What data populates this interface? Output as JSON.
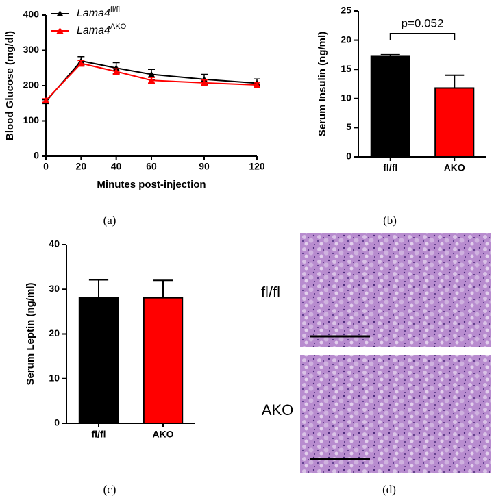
{
  "chart_data": [
    {
      "type": "line",
      "panel": "(a)",
      "x_label": "Minutes post-injection",
      "y_label": "Blood Glucose (mg/dl)",
      "x": [
        0,
        20,
        40,
        60,
        90,
        120
      ],
      "xlim": [
        0,
        120
      ],
      "xticks": [
        0,
        20,
        40,
        60,
        90,
        120
      ],
      "ylim": [
        0,
        400
      ],
      "yticks": [
        0,
        100,
        200,
        300,
        400
      ],
      "series": [
        {
          "name": "Lama4",
          "name_sup": "fl/fl",
          "color": "#000000",
          "values": [
            155,
            270,
            250,
            232,
            218,
            207
          ],
          "errors": [
            5,
            12,
            15,
            14,
            14,
            12
          ]
        },
        {
          "name": "Lama4",
          "name_sup": "AKO",
          "color": "#ff0000",
          "values": [
            158,
            263,
            240,
            215,
            208,
            202
          ],
          "errors": [
            5,
            8,
            8,
            8,
            8,
            6
          ]
        }
      ]
    },
    {
      "type": "bar",
      "panel": "(b)",
      "y_label": "Serum Insulin (ng/ml)",
      "categories": [
        "fl/fl",
        "AKO"
      ],
      "values": [
        17.2,
        11.8
      ],
      "errors": [
        0.3,
        2.2
      ],
      "colors": [
        "#000000",
        "#ff0000"
      ],
      "ylim": [
        0,
        25
      ],
      "yticks": [
        0,
        5,
        10,
        15,
        20,
        25
      ],
      "annotation": "p=0.052"
    },
    {
      "type": "bar",
      "panel": "(c)",
      "y_label": "Serum Leptin (ng/ml)",
      "categories": [
        "fl/fl",
        "AKO"
      ],
      "values": [
        28.1,
        28.1
      ],
      "errors": [
        4,
        3.9
      ],
      "colors": [
        "#000000",
        "#ff0000"
      ],
      "ylim": [
        0,
        40
      ],
      "yticks": [
        0,
        10,
        20,
        30,
        40
      ]
    }
  ],
  "histology": {
    "panel": "(d)",
    "labels": [
      "fl/fl",
      "AKO"
    ]
  }
}
